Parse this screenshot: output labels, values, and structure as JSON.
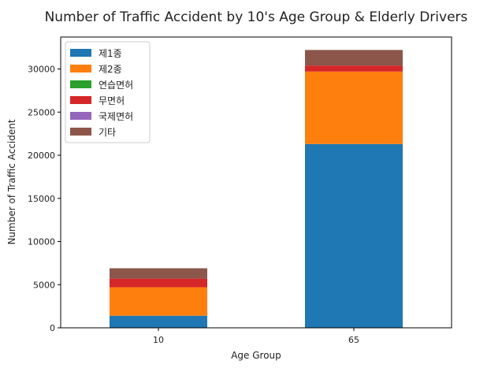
{
  "chart_data": {
    "type": "bar",
    "stacked": true,
    "title": "Number of Traffic Accident by 10's Age Group & Elderly Drivers",
    "xlabel": "Age Group",
    "ylabel": "Number of Traffic Accident",
    "categories": [
      "10",
      "65"
    ],
    "ylim": [
      0,
      33700
    ],
    "yticks": [
      0,
      5000,
      10000,
      15000,
      20000,
      25000,
      30000
    ],
    "legend_position": "top-left",
    "grid": false,
    "series": [
      {
        "name": "제1종",
        "color": "#1f77b4",
        "values": [
          1400,
          21300
        ]
      },
      {
        "name": "제2종",
        "color": "#ff7f0e",
        "values": [
          3300,
          8400
        ]
      },
      {
        "name": "연습면허",
        "color": "#2ca02c",
        "values": [
          0,
          0
        ]
      },
      {
        "name": "무면허",
        "color": "#d62728",
        "values": [
          1000,
          700
        ]
      },
      {
        "name": "국제면허",
        "color": "#9467bd",
        "values": [
          0,
          0
        ]
      },
      {
        "name": "기타",
        "color": "#8c564b",
        "values": [
          1200,
          1800
        ]
      }
    ]
  }
}
